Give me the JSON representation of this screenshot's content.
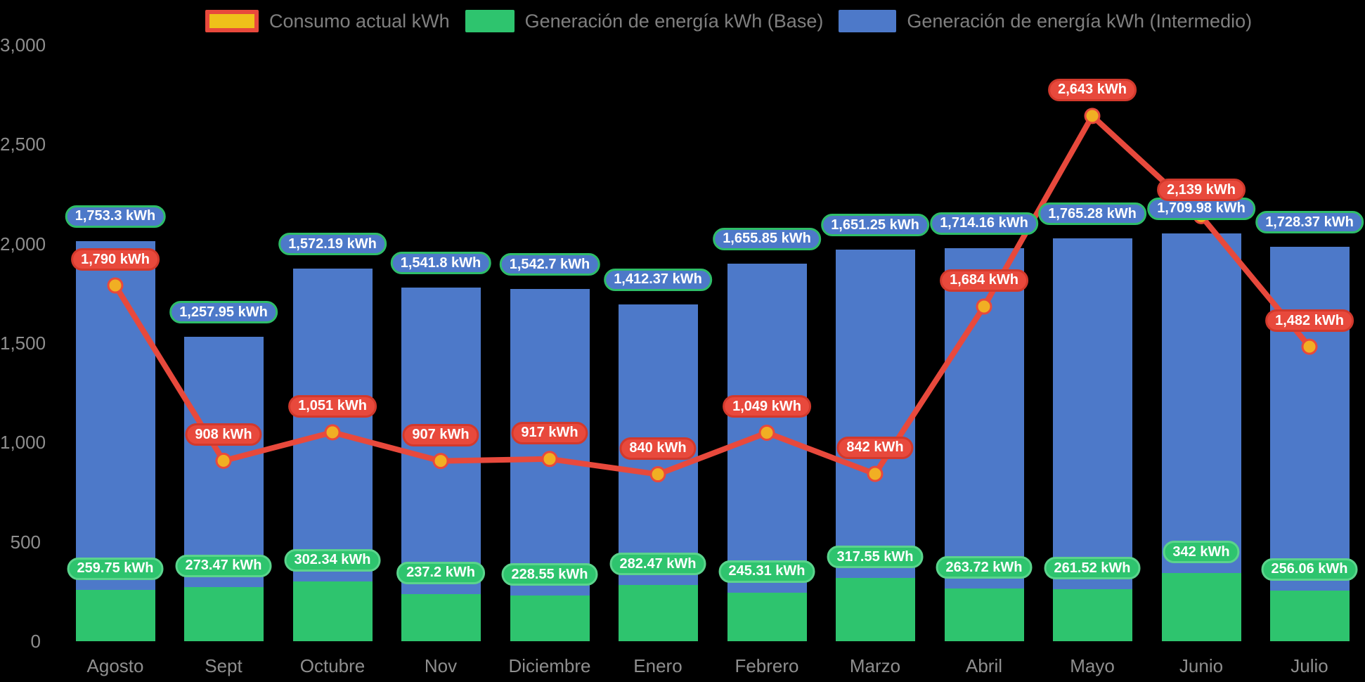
{
  "legend": {
    "items": [
      {
        "id": "consumo",
        "label": "Consumo actual kWh",
        "swatch_fill": "#efc11a",
        "swatch_border": "#e8493c",
        "swatch_width": 76
      },
      {
        "id": "base",
        "label": "Generación de energía kWh (Base)",
        "swatch_fill": "#2ec46e",
        "swatch_border": null,
        "swatch_width": 70
      },
      {
        "id": "intermedio",
        "label": "Generación de energía kWh (Intermedio)",
        "swatch_fill": "#4d79c9",
        "swatch_border": null,
        "swatch_width": 82
      }
    ]
  },
  "axes": {
    "y_tick_labels": [
      "0",
      "500",
      "1,000",
      "1,500",
      "2,000",
      "2,500",
      "3,000"
    ],
    "y_tick_values": [
      0,
      500,
      1000,
      1500,
      2000,
      2500,
      3000
    ],
    "x_labels": [
      "Agosto",
      "Sept",
      "Octubre",
      "Nov",
      "Diciembre",
      "Enero",
      "Febrero",
      "Marzo",
      "Abril",
      "Mayo",
      "Junio",
      "Julio"
    ]
  },
  "chart_data": {
    "type": "bar",
    "subtype": "stacked-bar-with-line-overlay",
    "title": "",
    "xlabel": "",
    "ylabel": "",
    "ylim": [
      0,
      3000
    ],
    "ytick_step": 500,
    "grid": false,
    "legend_position": "top",
    "background_color": "#000000",
    "axis_text_color": "#8e8e8e",
    "categories": [
      "Agosto",
      "Sept",
      "Octubre",
      "Nov",
      "Diciembre",
      "Enero",
      "Febrero",
      "Marzo",
      "Abril",
      "Mayo",
      "Junio",
      "Julio"
    ],
    "series": [
      {
        "name": "Consumo actual kWh",
        "type": "line",
        "color": "#e8493c",
        "point_color": "#f1af23",
        "values": [
          1790,
          908,
          1051,
          907,
          917,
          840,
          1049,
          842,
          1684,
          2643,
          2139,
          1482
        ],
        "labels": [
          "1,790 kWh",
          "908 kWh",
          "1,051 kWh",
          "907 kWh",
          "917 kWh",
          "840 kWh",
          "1,049 kWh",
          "842 kWh",
          "1,684 kWh",
          "2,643 kWh",
          "2,139 kWh",
          "1,482 kWh"
        ]
      },
      {
        "name": "Generación de energía kWh (Base)",
        "type": "bar",
        "stack_order": 0,
        "color": "#2ec46e",
        "label_bg": "#2ec46e",
        "label_border": "#5bd48c",
        "values": [
          259.75,
          273.47,
          302.34,
          237.2,
          228.55,
          282.47,
          245.31,
          317.55,
          263.72,
          261.52,
          342,
          256.06
        ],
        "labels": [
          "259.75 kWh",
          "273.47 kWh",
          "302.34 kWh",
          "237.2 kWh",
          "228.55 kWh",
          "282.47 kWh",
          "245.31 kWh",
          "317.55 kWh",
          "263.72 kWh",
          "261.52 kWh",
          "342 kWh",
          "256.06 kWh"
        ]
      },
      {
        "name": "Generación de energía kWh (Intermedio)",
        "type": "bar",
        "stack_order": 1,
        "color": "#4d79c9",
        "label_bg": "#4d79c9",
        "label_border": "#2ebd68",
        "values": [
          1753.3,
          1257.95,
          1572.19,
          1541.8,
          1542.7,
          1412.37,
          1655.85,
          1651.25,
          1714.16,
          1765.28,
          1709.98,
          1728.37
        ],
        "labels": [
          "1,753.3 kWh",
          "1,257.95 kWh",
          "1,572.19 kWh",
          "1,541.8 kWh",
          "1,542.7 kWh",
          "1,412.37 kWh",
          "1,655.85 kWh",
          "1,651.25 kWh",
          "1,714.16 kWh",
          "1,765.28 kWh",
          "1,709.98 kWh",
          "1,728.37 kWh"
        ]
      }
    ]
  }
}
